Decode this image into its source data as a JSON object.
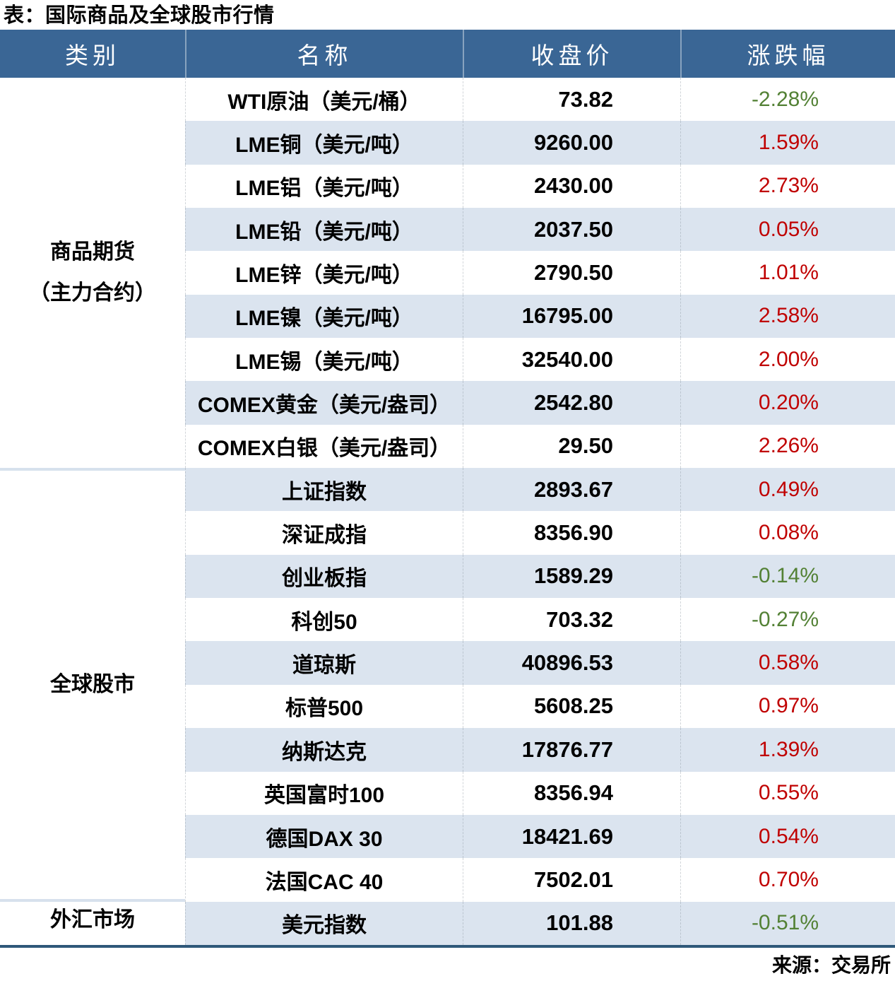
{
  "title": "表：国际商品及全球股市行情",
  "source_note": "来源：交易所",
  "colors": {
    "header_bg": "#3A6695",
    "band_bg": "#DBE4EF",
    "positive_red": "#C00000",
    "negative_green": "#538135",
    "bottom_rule": "#2F5879"
  },
  "table": {
    "headers": [
      "类别",
      "名称",
      "收盘价",
      "涨跌幅"
    ],
    "groups": [
      {
        "label": "商品期货\n（主力合约）",
        "row_count": 9
      },
      {
        "label": "全球股市",
        "row_count": 10
      },
      {
        "label": "外汇市场",
        "row_count": 1
      }
    ],
    "rows": [
      {
        "name": "WTI原油（美元/桶）",
        "close": "73.82",
        "change": "-2.28%"
      },
      {
        "name": "LME铜（美元/吨）",
        "close": "9260.00",
        "change": "1.59%"
      },
      {
        "name": "LME铝（美元/吨）",
        "close": "2430.00",
        "change": "2.73%"
      },
      {
        "name": "LME铅（美元/吨）",
        "close": "2037.50",
        "change": "0.05%"
      },
      {
        "name": "LME锌（美元/吨）",
        "close": "2790.50",
        "change": "1.01%"
      },
      {
        "name": "LME镍（美元/吨）",
        "close": "16795.00",
        "change": "2.58%"
      },
      {
        "name": "LME锡（美元/吨）",
        "close": "32540.00",
        "change": "2.00%"
      },
      {
        "name": "COMEX黄金（美元/盎司）",
        "close": "2542.80",
        "change": "0.20%"
      },
      {
        "name": "COMEX白银（美元/盎司）",
        "close": "29.50",
        "change": "2.26%"
      },
      {
        "name": "上证指数",
        "close": "2893.67",
        "change": "0.49%"
      },
      {
        "name": "深证成指",
        "close": "8356.90",
        "change": "0.08%"
      },
      {
        "name": "创业板指",
        "close": "1589.29",
        "change": "-0.14%"
      },
      {
        "name": "科创50",
        "close": "703.32",
        "change": "-0.27%"
      },
      {
        "name": "道琼斯",
        "close": "40896.53",
        "change": "0.58%"
      },
      {
        "name": "标普500",
        "close": "5608.25",
        "change": "0.97%"
      },
      {
        "name": "纳斯达克",
        "close": "17876.77",
        "change": "1.39%"
      },
      {
        "name": "英国富时100",
        "close": "8356.94",
        "change": "0.55%"
      },
      {
        "name": "德国DAX 30",
        "close": "18421.69",
        "change": "0.54%"
      },
      {
        "name": "法国CAC 40",
        "close": "7502.01",
        "change": "0.70%"
      },
      {
        "name": "美元指数",
        "close": "101.88",
        "change": "-0.51%"
      }
    ]
  },
  "chart_data": {
    "type": "table",
    "title": "表：国际商品及全球股市行情",
    "columns": [
      "类别",
      "名称",
      "收盘价",
      "涨跌幅"
    ],
    "rows": [
      [
        "商品期货（主力合约）",
        "WTI原油（美元/桶）",
        73.82,
        -2.28
      ],
      [
        "商品期货（主力合约）",
        "LME铜（美元/吨）",
        9260.0,
        1.59
      ],
      [
        "商品期货（主力合约）",
        "LME铝（美元/吨）",
        2430.0,
        2.73
      ],
      [
        "商品期货（主力合约）",
        "LME铅（美元/吨）",
        2037.5,
        0.05
      ],
      [
        "商品期货（主力合约）",
        "LME锌（美元/吨）",
        2790.5,
        1.01
      ],
      [
        "商品期货（主力合约）",
        "LME镍（美元/吨）",
        16795.0,
        2.58
      ],
      [
        "商品期货（主力合约）",
        "LME锡（美元/吨）",
        32540.0,
        2.0
      ],
      [
        "商品期货（主力合约）",
        "COMEX黄金（美元/盎司）",
        2542.8,
        0.2
      ],
      [
        "商品期货（主力合约）",
        "COMEX白银（美元/盎司）",
        29.5,
        2.26
      ],
      [
        "全球股市",
        "上证指数",
        2893.67,
        0.49
      ],
      [
        "全球股市",
        "深证成指",
        8356.9,
        0.08
      ],
      [
        "全球股市",
        "创业板指",
        1589.29,
        -0.14
      ],
      [
        "全球股市",
        "科创50",
        703.32,
        -0.27
      ],
      [
        "全球股市",
        "道琼斯",
        40896.53,
        0.58
      ],
      [
        "全球股市",
        "标普500",
        5608.25,
        0.97
      ],
      [
        "全球股市",
        "纳斯达克",
        17876.77,
        1.39
      ],
      [
        "全球股市",
        "英国富时100",
        8356.94,
        0.55
      ],
      [
        "全球股市",
        "德国DAX 30",
        18421.69,
        0.54
      ],
      [
        "全球股市",
        "法国CAC 40",
        7502.01,
        0.7
      ],
      [
        "外汇市场",
        "美元指数",
        101.88,
        -0.51
      ]
    ],
    "change_unit": "%",
    "positive_color": "#C00000",
    "negative_color": "#538135",
    "source": "来源：交易所"
  }
}
